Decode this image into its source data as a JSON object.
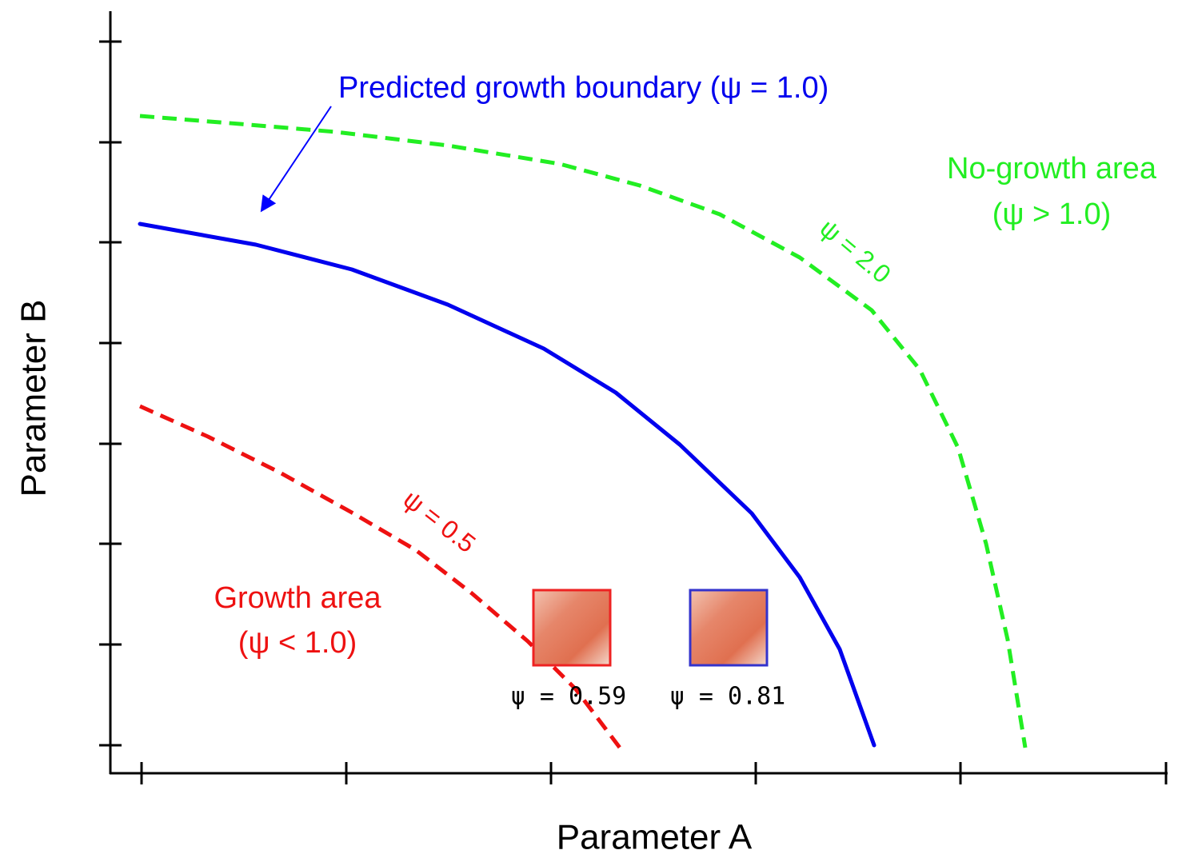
{
  "axes": {
    "x_label": "Parameter A",
    "y_label": "Parameter B"
  },
  "annotations": {
    "boundary": "Predicted growth boundary (ψ = 1.0)",
    "no_growth_title": "No-growth area",
    "no_growth_condition": "(ψ > 1.0)",
    "growth_title": "Growth area",
    "growth_condition": "(ψ < 1.0)",
    "upper_curve": "ψ = 2.0",
    "lower_curve": "ψ = 0.5"
  },
  "samples": [
    {
      "label": "ψ = 0.59"
    },
    {
      "label": "ψ = 0.81"
    }
  ]
}
